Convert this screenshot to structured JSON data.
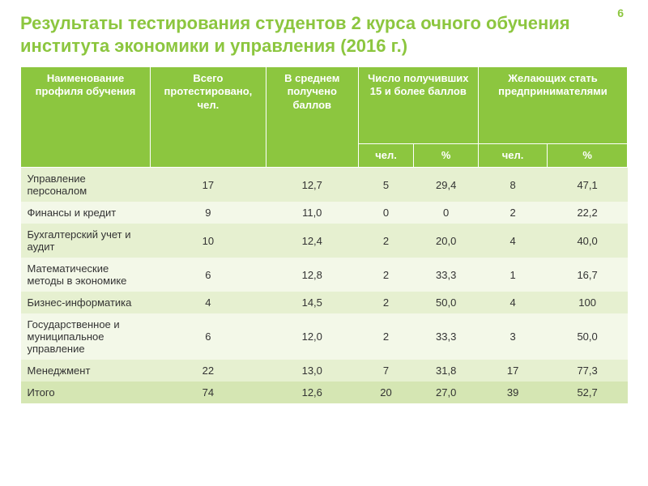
{
  "page_number": "6",
  "title": "Результаты тестирования студентов 2 курса очного обучения института экономики и управления (2016 г.)",
  "colors": {
    "accent": "#8cc63f",
    "row_odd": "#e6f0d0",
    "row_even": "#f3f8e8",
    "row_total": "#d5e6b3",
    "header_text": "#ffffff",
    "body_text": "#333333",
    "background": "#ffffff"
  },
  "table": {
    "type": "table",
    "headers_row1": [
      "Наименование профиля обучения",
      "Всего протестировано, чел.",
      "В среднем получено баллов",
      "Число получивших 15 и более баллов",
      "Желающих стать предпринимателями"
    ],
    "headers_row2": [
      "чел.",
      "%",
      "чел.",
      "%"
    ],
    "rows": [
      {
        "label": "Управление персоналом",
        "v": [
          "17",
          "12,7",
          "5",
          "29,4",
          "8",
          "47,1"
        ]
      },
      {
        "label": "Финансы и кредит",
        "v": [
          "9",
          "11,0",
          "0",
          "0",
          "2",
          "22,2"
        ]
      },
      {
        "label": "Бухгалтерский учет и аудит",
        "v": [
          "10",
          "12,4",
          "2",
          "20,0",
          "4",
          "40,0"
        ]
      },
      {
        "label": "Математические методы в экономике",
        "v": [
          "6",
          "12,8",
          "2",
          "33,3",
          "1",
          "16,7"
        ]
      },
      {
        "label": "Бизнес-информатика",
        "v": [
          "4",
          "14,5",
          "2",
          "50,0",
          "4",
          "100"
        ]
      },
      {
        "label": "Государственное и муниципальное управление",
        "v": [
          "6",
          "12,0",
          "2",
          "33,3",
          "3",
          "50,0"
        ]
      },
      {
        "label": "Менеджмент",
        "v": [
          "22",
          "13,0",
          "7",
          "31,8",
          "17",
          "77,3"
        ]
      }
    ],
    "total_row": {
      "label": "Итого",
      "v": [
        "74",
        "12,6",
        "20",
        "27,0",
        "39",
        "52,7"
      ]
    },
    "header_fontsize": 13,
    "body_fontsize": 13,
    "title_fontsize": 22
  }
}
